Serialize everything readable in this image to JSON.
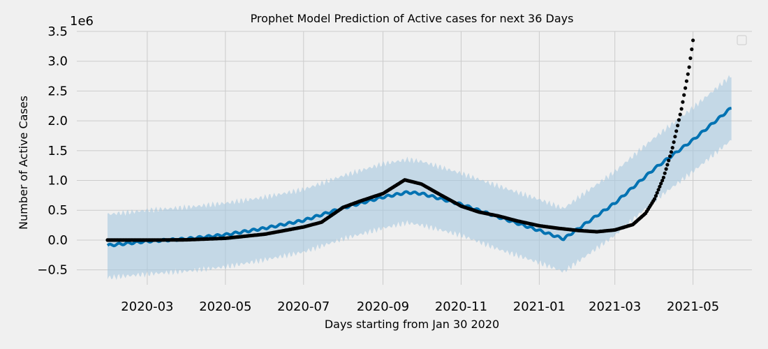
{
  "chart_data": {
    "type": "line",
    "title": "Prophet Model Prediction of Active cases for next 36 Days",
    "xlabel": "Days starting from Jan 30 2020",
    "ylabel": "Number of Active Cases",
    "y_offset_label": "1e6",
    "ylim": [
      -0.75,
      3.5
    ],
    "xlim": [
      "2020-01-06",
      "2021-06-16"
    ],
    "grid": true,
    "legend": "top-right, empty box",
    "x_ticks": [
      {
        "date": "2020-03-01",
        "label": "2020-03"
      },
      {
        "date": "2020-05-01",
        "label": "2020-05"
      },
      {
        "date": "2020-07-01",
        "label": "2020-07"
      },
      {
        "date": "2020-09-01",
        "label": "2020-09"
      },
      {
        "date": "2020-11-01",
        "label": "2020-11"
      },
      {
        "date": "2021-01-01",
        "label": "2021-01"
      },
      {
        "date": "2021-03-01",
        "label": "2021-03"
      },
      {
        "date": "2021-05-01",
        "label": "2021-05"
      }
    ],
    "y_ticks": [
      {
        "value": 3.5,
        "label": "3.5"
      },
      {
        "value": 3.0,
        "label": "3.0"
      },
      {
        "value": 2.5,
        "label": "2.5"
      },
      {
        "value": 2.0,
        "label": "2.0"
      },
      {
        "value": 1.5,
        "label": "1.5"
      },
      {
        "value": 1.0,
        "label": "1.0"
      },
      {
        "value": 0.5,
        "label": "0.5"
      },
      {
        "value": 0.0,
        "label": "0.0"
      },
      {
        "value": -0.5,
        "label": "−0.5"
      }
    ],
    "series": [
      {
        "role": "actual",
        "style": "dots",
        "color": "#000000",
        "points": [
          {
            "x": "2020-01-30",
            "y": 0.0
          },
          {
            "x": "2020-03-01",
            "y": 0.0
          },
          {
            "x": "2020-04-01",
            "y": 0.005
          },
          {
            "x": "2020-05-01",
            "y": 0.03
          },
          {
            "x": "2020-06-01",
            "y": 0.1
          },
          {
            "x": "2020-07-01",
            "y": 0.22
          },
          {
            "x": "2020-07-15",
            "y": 0.3
          },
          {
            "x": "2020-08-01",
            "y": 0.55
          },
          {
            "x": "2020-08-15",
            "y": 0.66
          },
          {
            "x": "2020-09-01",
            "y": 0.78
          },
          {
            "x": "2020-09-18",
            "y": 1.01
          },
          {
            "x": "2020-10-01",
            "y": 0.94
          },
          {
            "x": "2020-10-15",
            "y": 0.77
          },
          {
            "x": "2020-11-01",
            "y": 0.57
          },
          {
            "x": "2020-11-15",
            "y": 0.47
          },
          {
            "x": "2020-12-01",
            "y": 0.4
          },
          {
            "x": "2020-12-15",
            "y": 0.32
          },
          {
            "x": "2021-01-01",
            "y": 0.24
          },
          {
            "x": "2021-01-15",
            "y": 0.2
          },
          {
            "x": "2021-02-01",
            "y": 0.16
          },
          {
            "x": "2021-02-15",
            "y": 0.14
          },
          {
            "x": "2021-03-01",
            "y": 0.17
          },
          {
            "x": "2021-03-15",
            "y": 0.26
          },
          {
            "x": "2021-03-25",
            "y": 0.45
          },
          {
            "x": "2021-04-01",
            "y": 0.69
          },
          {
            "x": "2021-04-08",
            "y": 1.05
          },
          {
            "x": "2021-04-15",
            "y": 1.55
          },
          {
            "x": "2021-04-22",
            "y": 2.2
          },
          {
            "x": "2021-04-28",
            "y": 2.9
          },
          {
            "x": "2021-05-01",
            "y": 3.35
          }
        ]
      },
      {
        "role": "forecast",
        "style": "line",
        "color": "#0072b2",
        "points": [
          {
            "x": "2020-01-30",
            "y": -0.09
          },
          {
            "x": "2020-03-01",
            "y": -0.02
          },
          {
            "x": "2020-04-01",
            "y": 0.02
          },
          {
            "x": "2020-05-01",
            "y": 0.09
          },
          {
            "x": "2020-06-01",
            "y": 0.2
          },
          {
            "x": "2020-07-01",
            "y": 0.33
          },
          {
            "x": "2020-08-01",
            "y": 0.54
          },
          {
            "x": "2020-09-01",
            "y": 0.72
          },
          {
            "x": "2020-09-20",
            "y": 0.8
          },
          {
            "x": "2020-10-01",
            "y": 0.78
          },
          {
            "x": "2020-11-01",
            "y": 0.6
          },
          {
            "x": "2020-12-01",
            "y": 0.38
          },
          {
            "x": "2021-01-01",
            "y": 0.16
          },
          {
            "x": "2021-01-20",
            "y": 0.02
          },
          {
            "x": "2021-02-01",
            "y": 0.2
          },
          {
            "x": "2021-03-01",
            "y": 0.62
          },
          {
            "x": "2021-04-01",
            "y": 1.2
          },
          {
            "x": "2021-05-01",
            "y": 1.68
          },
          {
            "x": "2021-05-31",
            "y": 2.22
          }
        ]
      },
      {
        "role": "uncertainty band",
        "style": "band",
        "color": "#a6c8e0",
        "points": [
          {
            "x": "2020-01-30",
            "lower": -0.63,
            "upper": 0.43
          },
          {
            "x": "2020-03-01",
            "lower": -0.57,
            "upper": 0.5
          },
          {
            "x": "2020-04-01",
            "lower": -0.52,
            "upper": 0.55
          },
          {
            "x": "2020-05-01",
            "lower": -0.45,
            "upper": 0.62
          },
          {
            "x": "2020-06-01",
            "lower": -0.33,
            "upper": 0.72
          },
          {
            "x": "2020-07-01",
            "lower": -0.2,
            "upper": 0.85
          },
          {
            "x": "2020-08-01",
            "lower": 0.02,
            "upper": 1.08
          },
          {
            "x": "2020-09-01",
            "lower": 0.2,
            "upper": 1.28
          },
          {
            "x": "2020-09-20",
            "lower": 0.29,
            "upper": 1.35
          },
          {
            "x": "2020-10-01",
            "lower": 0.25,
            "upper": 1.32
          },
          {
            "x": "2020-11-01",
            "lower": 0.08,
            "upper": 1.12
          },
          {
            "x": "2020-12-01",
            "lower": -0.16,
            "upper": 0.9
          },
          {
            "x": "2021-01-01",
            "lower": -0.38,
            "upper": 0.68
          },
          {
            "x": "2021-01-20",
            "lower": -0.53,
            "upper": 0.53
          },
          {
            "x": "2021-02-01",
            "lower": -0.35,
            "upper": 0.72
          },
          {
            "x": "2021-03-01",
            "lower": 0.08,
            "upper": 1.15
          },
          {
            "x": "2021-04-01",
            "lower": 0.66,
            "upper": 1.72
          },
          {
            "x": "2021-05-01",
            "lower": 1.15,
            "upper": 2.22
          },
          {
            "x": "2021-05-31",
            "lower": 1.68,
            "upper": 2.76
          }
        ]
      }
    ]
  }
}
